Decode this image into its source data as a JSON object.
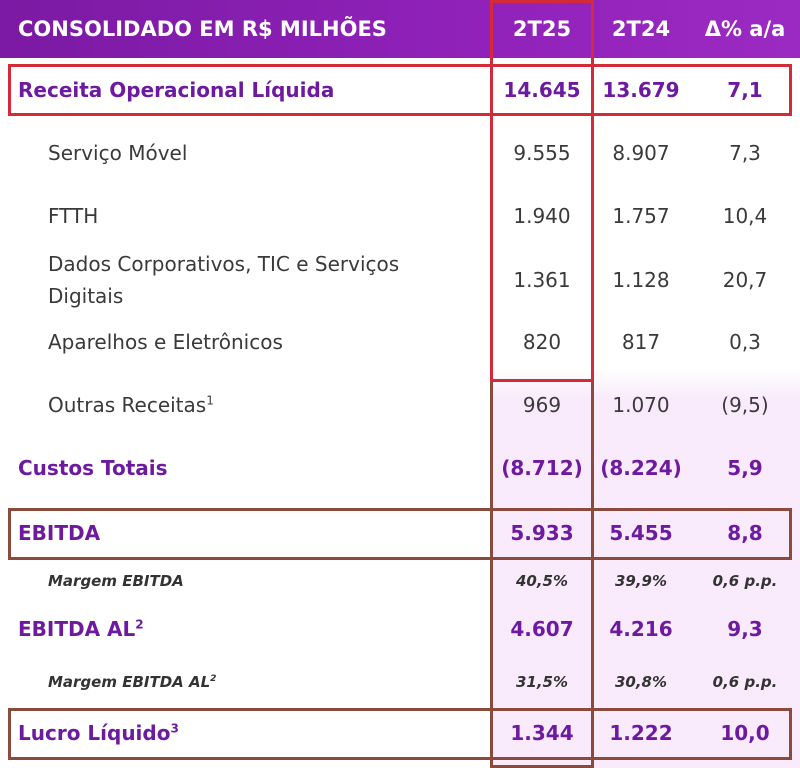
{
  "header": {
    "title": "CONSOLIDADO EM R$ MILHÕES",
    "col1": "2T25",
    "col2": "2T24",
    "col3": "Δ% a/a"
  },
  "rows": [
    {
      "label": "Receita Operacional Líquida",
      "v1": "14.645",
      "v2": "13.679",
      "v3": "7,1"
    },
    {
      "label": "Serviço Móvel",
      "v1": "9.555",
      "v2": "8.907",
      "v3": "7,3"
    },
    {
      "label": "FTTH",
      "v1": "1.940",
      "v2": "1.757",
      "v3": "10,4"
    },
    {
      "label_line1": "Dados Corporativos, TIC e Serviços",
      "label_line2": "Digitais",
      "v1": "1.361",
      "v2": "1.128",
      "v3": "20,7"
    },
    {
      "label": "Aparelhos e Eletrônicos",
      "v1": "820",
      "v2": "817",
      "v3": "0,3"
    },
    {
      "label": "Outras Receitas",
      "sup": "1",
      "v1": "969",
      "v2": "1.070",
      "v3": "(9,5)"
    },
    {
      "label": "Custos Totais",
      "v1": "(8.712)",
      "v2": "(8.224)",
      "v3": "5,9"
    },
    {
      "label": "EBITDA",
      "v1": "5.933",
      "v2": "5.455",
      "v3": "8,8"
    },
    {
      "label": "Margem EBITDA",
      "v1": "40,5%",
      "v2": "39,9%",
      "v3": "0,6 p.p."
    },
    {
      "label": "EBITDA AL",
      "sup": "2",
      "v1": "4.607",
      "v2": "4.216",
      "v3": "9,3"
    },
    {
      "label": "Margem EBITDA AL",
      "sup": "2",
      "v1": "31,5%",
      "v2": "30,8%",
      "v3": "0,6 p.p."
    },
    {
      "label": "Lucro Líquido",
      "sup": "3",
      "v1": "1.344",
      "v2": "1.222",
      "v3": "10,0"
    }
  ],
  "colors": {
    "header_bg": "#8f21b8",
    "emphasis_text": "#6e1aa0",
    "highlight_red": "#d42b3a",
    "highlight_brown": "#8a4a3c"
  }
}
